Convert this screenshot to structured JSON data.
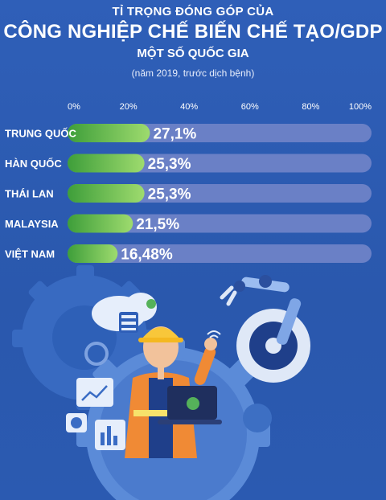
{
  "title_line1": "TỈ TRỌNG ĐÓNG GÓP CỦA",
  "title_line2": "CÔNG NGHIỆP CHẾ BIẾN CHẾ TẠO/GDP",
  "title_line3": "MỘT SỐ QUỐC GIA",
  "subtitle": "(năm 2019, trước dịch bệnh)",
  "colors": {
    "background": "#2c5cb3",
    "track": "#6a80c6",
    "bar_start": "#3e9e3a",
    "bar_end": "#9edb6e",
    "text": "#ffffff"
  },
  "chart_data": {
    "type": "bar",
    "orientation": "horizontal",
    "categories": [
      "TRUNG QUỐC",
      "HÀN QUỐC",
      "THÁI LAN",
      "MALAYSIA",
      "VIỆT NAM"
    ],
    "values": [
      27.1,
      25.3,
      25.3,
      21.5,
      16.48
    ],
    "value_labels": [
      "27,1%",
      "25,3%",
      "25,3%",
      "21,5%",
      "16,48%"
    ],
    "xlim": [
      0,
      100
    ],
    "ticks": [
      0,
      20,
      40,
      60,
      80,
      100
    ],
    "tick_labels": [
      "0%",
      "20%",
      "40%",
      "60%",
      "80%",
      "100%"
    ],
    "grid": false,
    "legend": "none"
  }
}
